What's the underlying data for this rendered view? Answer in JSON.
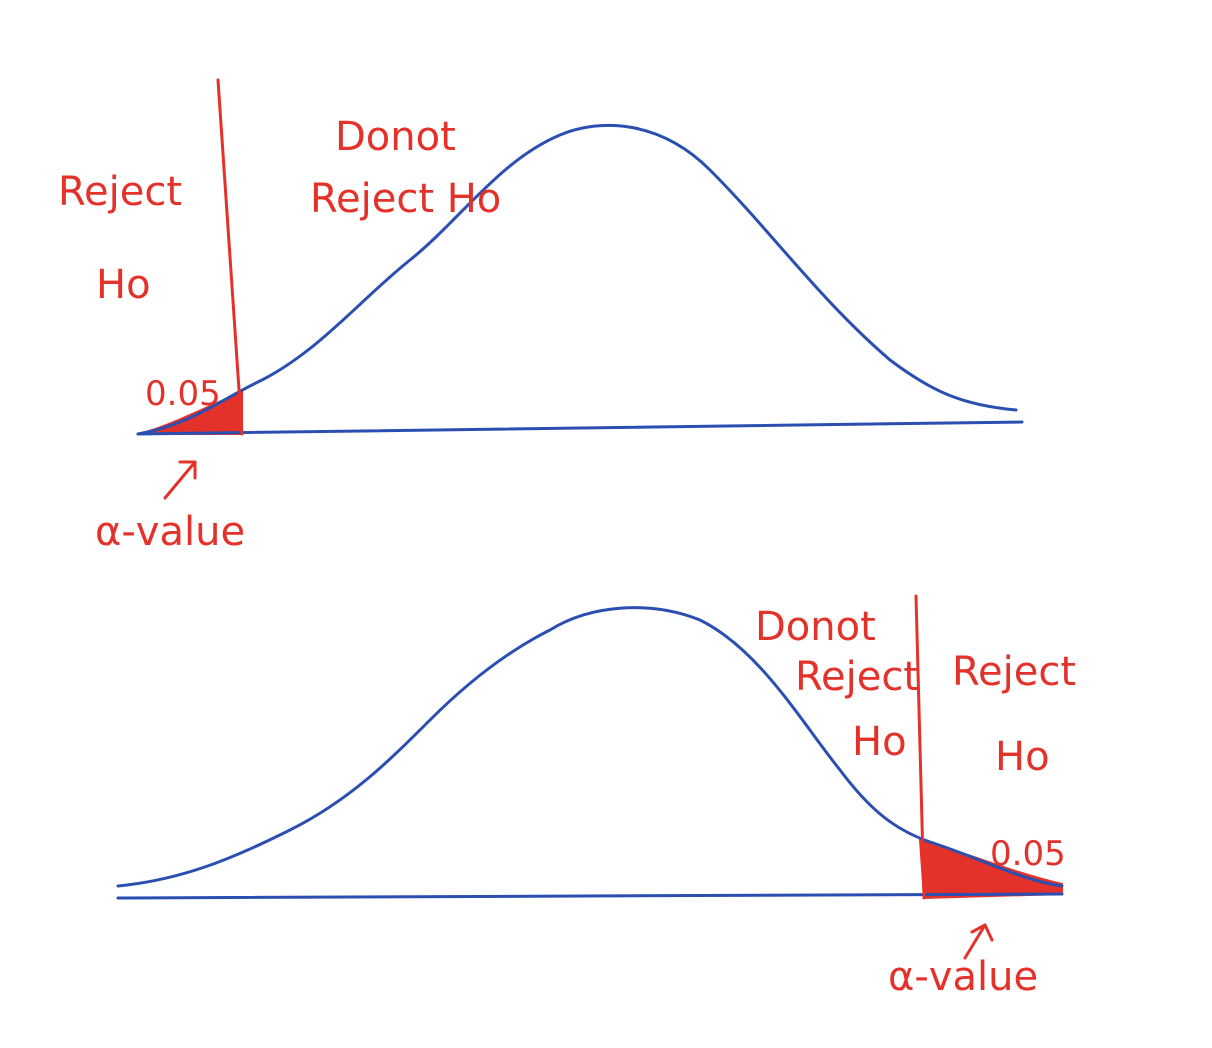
{
  "top_panel": {
    "reject_label_line1": "Reject",
    "reject_label_line2": "Ho",
    "accept_label_line1": "Donot",
    "accept_label_line2": "Reject Ho",
    "alpha_area": "0.05",
    "alpha_caption": "α-value",
    "tail": "left"
  },
  "bottom_panel": {
    "accept_label_line1": "Donot",
    "accept_label_line2": "Reject",
    "accept_label_line3": "Ho",
    "reject_label_line1": "Reject",
    "reject_label_line2": "Ho",
    "alpha_area": "0.05",
    "alpha_caption": "α-value",
    "tail": "right"
  },
  "colors": {
    "curve": "#2a4fb0",
    "annotation": "#e4322b"
  }
}
